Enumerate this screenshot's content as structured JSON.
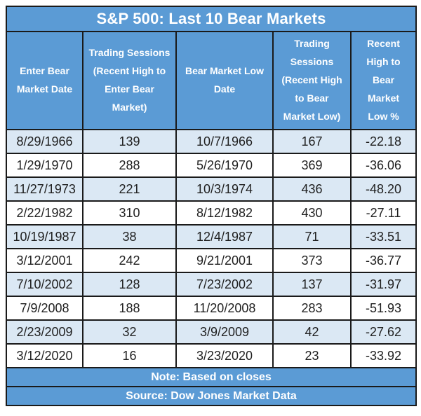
{
  "title": "S&P 500: Last 10 Bear Markets",
  "table": {
    "columns": [
      "Enter Bear\nMarket Date",
      "Trading Sessions\n(Recent High to\nEnter Bear\nMarket)",
      "Bear Market Low\nDate",
      "Trading\nSessions\n(Recent High\nto Bear\nMarket Low)",
      "Recent\nHigh to\nBear\nMarket\nLow %"
    ],
    "rows": [
      [
        "8/29/1966",
        "139",
        "10/7/1966",
        "167",
        "-22.18"
      ],
      [
        "1/29/1970",
        "288",
        "5/26/1970",
        "369",
        "-36.06"
      ],
      [
        "11/27/1973",
        "221",
        "10/3/1974",
        "436",
        "-48.20"
      ],
      [
        "2/22/1982",
        "310",
        "8/12/1982",
        "430",
        "-27.11"
      ],
      [
        "10/19/1987",
        "38",
        "12/4/1987",
        "71",
        "-33.51"
      ],
      [
        "3/12/2001",
        "242",
        "9/21/2001",
        "373",
        "-36.77"
      ],
      [
        "7/10/2002",
        "128",
        "7/23/2002",
        "137",
        "-31.97"
      ],
      [
        "7/9/2008",
        "188",
        "11/20/2008",
        "283",
        "-51.93"
      ],
      [
        "2/23/2009",
        "32",
        "3/9/2009",
        "42",
        "-27.62"
      ],
      [
        "3/12/2020",
        "16",
        "3/23/2020",
        "23",
        "-33.92"
      ]
    ]
  },
  "note": "Note: Based on closes",
  "source": "Source: Dow Jones Market Data",
  "colors": {
    "header_blue": "#5B9BD5",
    "band_blue": "#DBE8F4",
    "border_dark": "#1a1a1a",
    "divider_navy": "#17375d",
    "text_dark": "#1f1f1f",
    "title_text": "#ffffff"
  },
  "chart_data": {
    "type": "table",
    "title": "S&P 500: Last 10 Bear Markets",
    "columns": [
      "Enter Bear Market Date",
      "Trading Sessions (Recent High to Enter Bear Market)",
      "Bear Market Low Date",
      "Trading Sessions (Recent High to Bear Market Low)",
      "Recent High to Bear Market Low %"
    ],
    "rows": [
      [
        "8/29/1966",
        139,
        "10/7/1966",
        167,
        -22.18
      ],
      [
        "1/29/1970",
        288,
        "5/26/1970",
        369,
        -36.06
      ],
      [
        "11/27/1973",
        221,
        "10/3/1974",
        436,
        -48.2
      ],
      [
        "2/22/1982",
        310,
        "8/12/1982",
        430,
        -27.11
      ],
      [
        "10/19/1987",
        38,
        "12/4/1987",
        71,
        -33.51
      ],
      [
        "3/12/2001",
        242,
        "9/21/2001",
        373,
        -36.77
      ],
      [
        "7/10/2002",
        128,
        "7/23/2002",
        137,
        -31.97
      ],
      [
        "7/9/2008",
        188,
        "11/20/2008",
        283,
        -51.93
      ],
      [
        "2/23/2009",
        32,
        "3/9/2009",
        42,
        -27.62
      ],
      [
        "3/12/2020",
        16,
        "3/23/2020",
        23,
        -33.92
      ]
    ],
    "note": "Note: Based on closes",
    "source": "Source: Dow Jones Market Data"
  }
}
